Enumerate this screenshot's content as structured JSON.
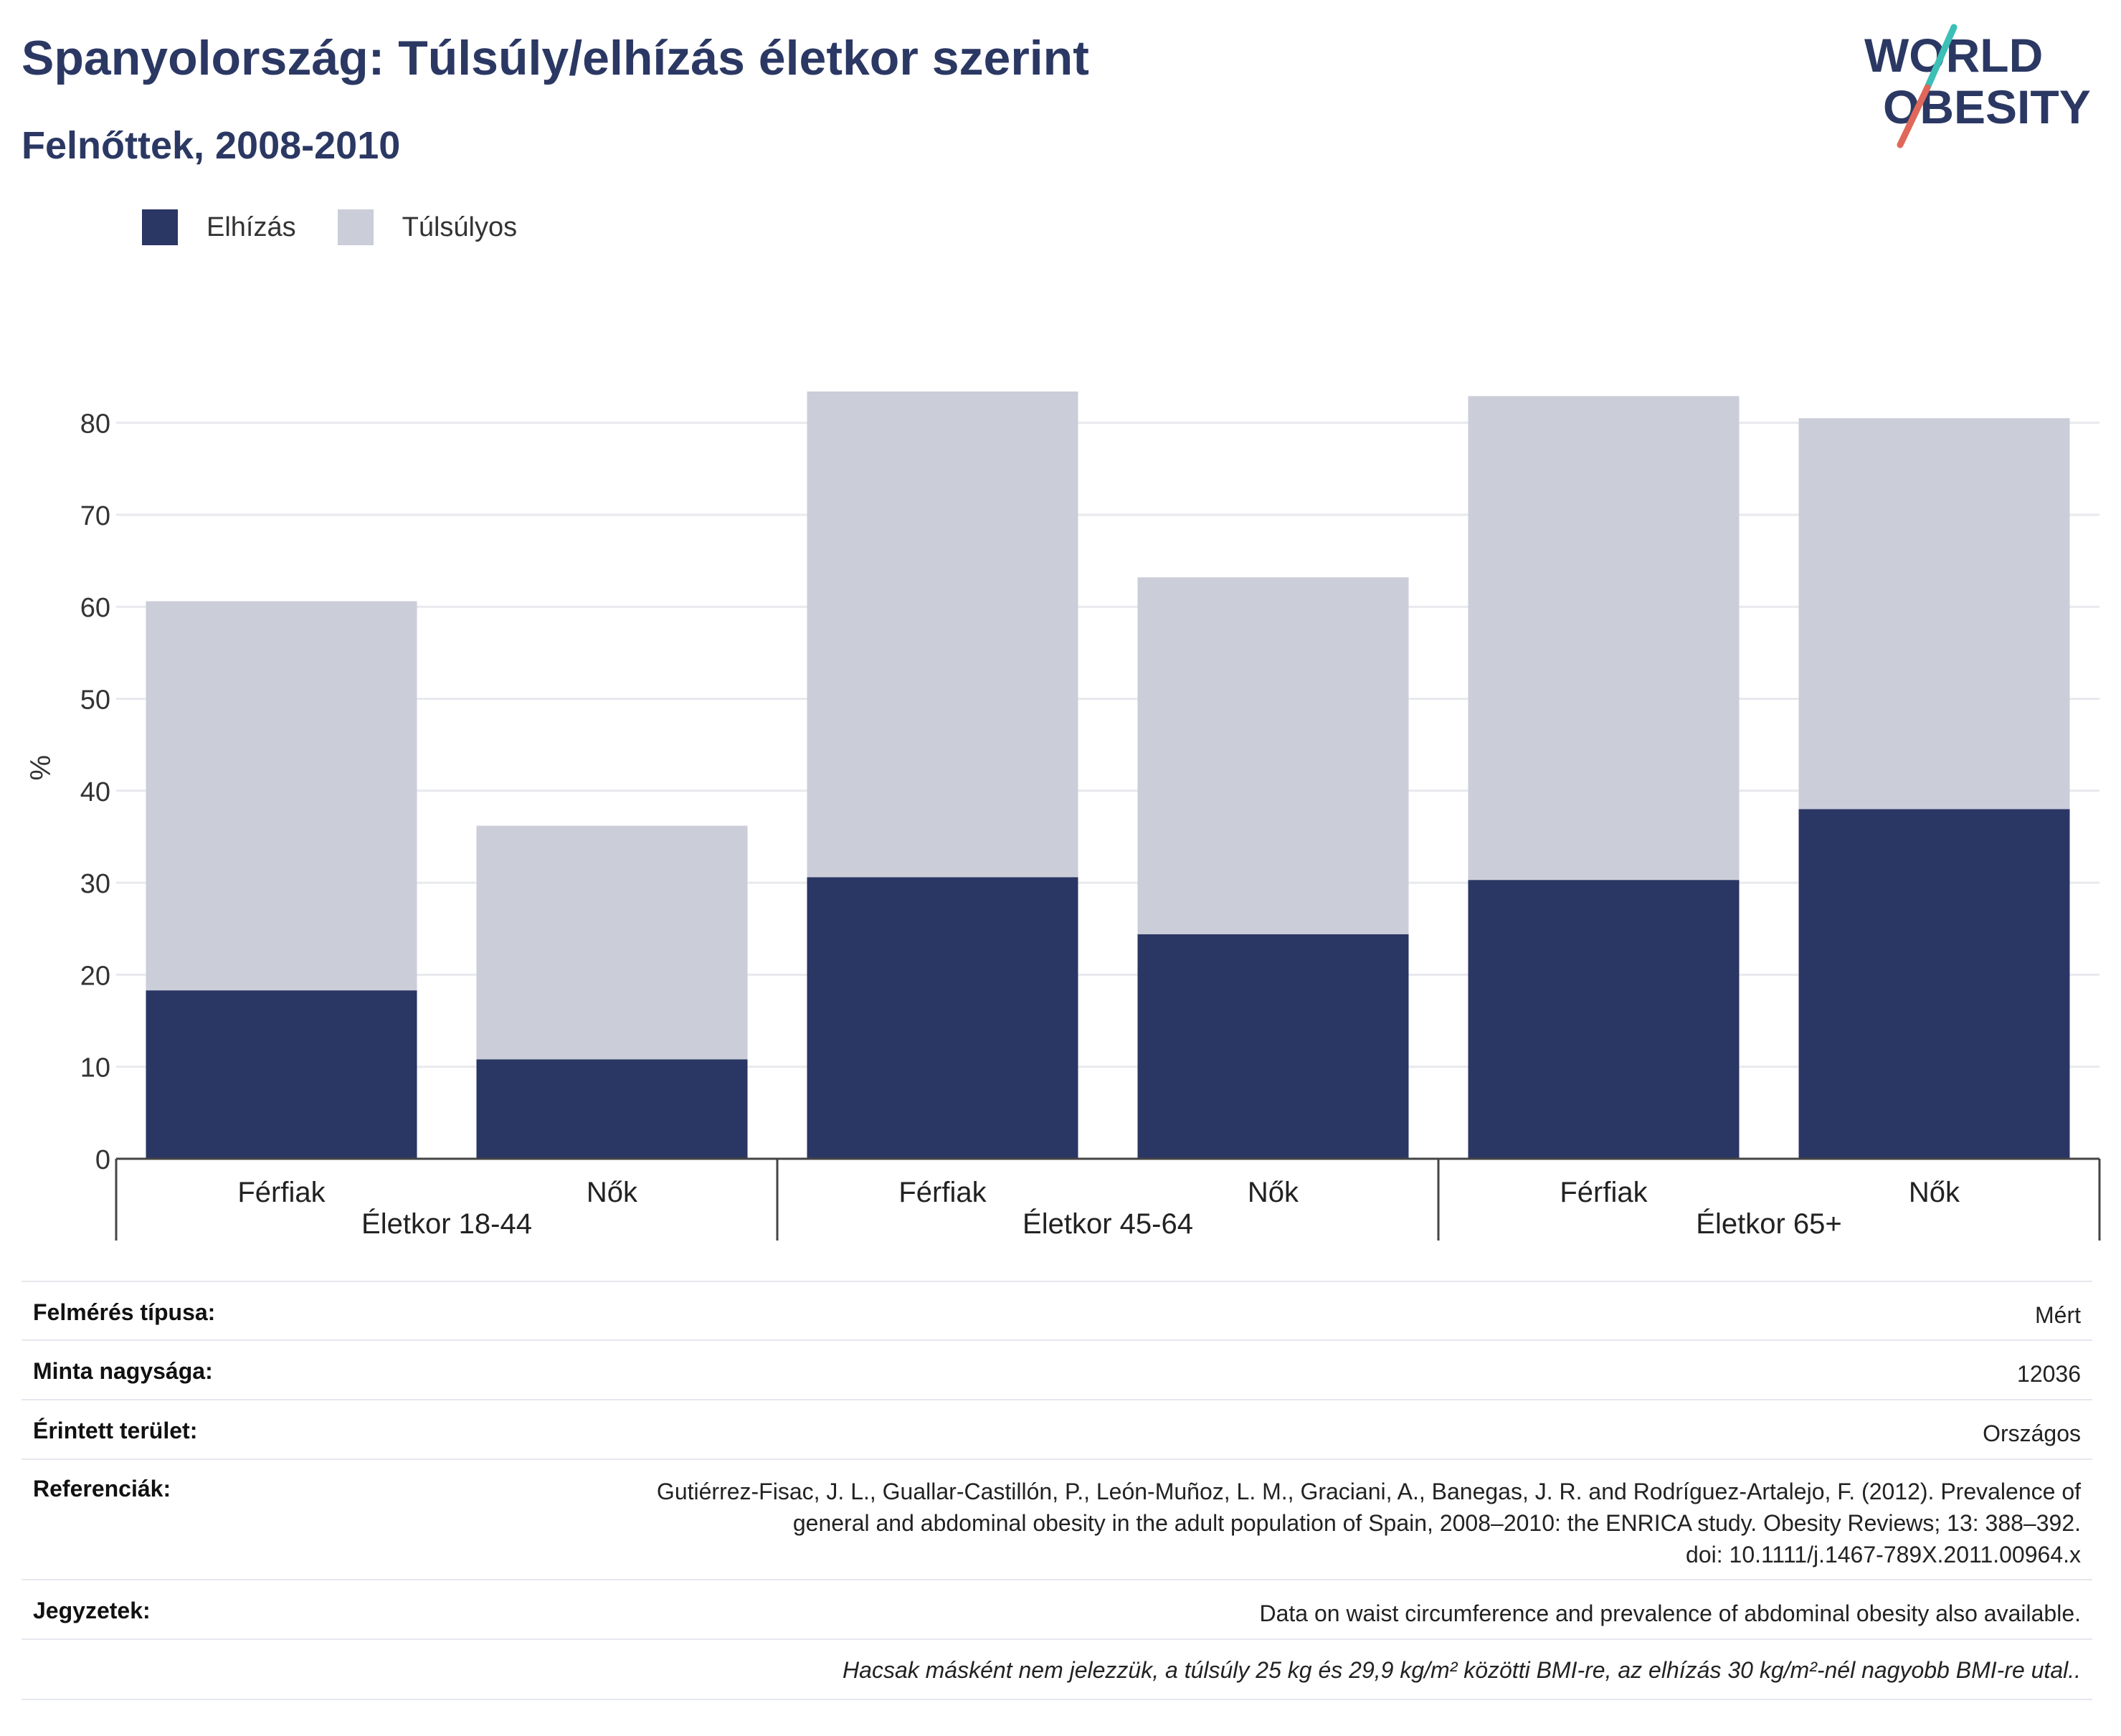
{
  "title": "Spanyolország: Túlsúly/elhízás életkor szerint",
  "subtitle": "Felnőttek, 2008-2010",
  "logo": {
    "line1": "WORLD",
    "line2": "OBESITY"
  },
  "colors": {
    "obesity": "#2a3664",
    "overweight": "#cbcdd9",
    "title": "#2b3863",
    "accent_teal": "#3bbfb6",
    "accent_red": "#e0685a"
  },
  "legend": [
    {
      "label": "Elhízás",
      "color": "#2a3664"
    },
    {
      "label": "Túlsúlyos",
      "color": "#cbcdd9"
    }
  ],
  "chart_data": {
    "type": "bar",
    "stacked": true,
    "ylabel": "%",
    "ylim": [
      0,
      85
    ],
    "yticks": [
      0,
      10,
      20,
      30,
      40,
      50,
      60,
      70,
      80
    ],
    "grid": true,
    "groups": [
      "Életkor 18-44",
      "Életkor 45-64",
      "Életkor 65+"
    ],
    "categories": [
      "Férfiak",
      "Nők",
      "Férfiak",
      "Nők",
      "Férfiak",
      "Nők"
    ],
    "series": [
      {
        "name": "Elhízás",
        "values": [
          18.3,
          10.8,
          30.6,
          24.4,
          30.3,
          38.0
        ]
      },
      {
        "name": "Túlsúlyos",
        "values": [
          42.3,
          25.4,
          52.8,
          38.8,
          52.6,
          42.5
        ]
      }
    ]
  },
  "info": {
    "survey_type": {
      "label": "Felmérés típusa:",
      "value": "Mért"
    },
    "sample_size": {
      "label": "Minta nagysága:",
      "value": "12036"
    },
    "area": {
      "label": "Érintett terület:",
      "value": "Országos"
    },
    "references": {
      "label": "Referenciák:",
      "lines": [
        "Gutiérrez-Fisac, J. L., Guallar-Castillón, P., León-Muñoz, L. M., Graciani, A., Banegas, J. R. and Rodríguez-Artalejo, F. (2012). Prevalence of",
        "general and abdominal obesity in the adult population of Spain, 2008–2010: the ENRICA study. Obesity Reviews; 13: 388–392.",
        "doi: 10.1111/j.1467-789X.2011.00964.x"
      ]
    },
    "notes": {
      "label": "Jegyzetek:",
      "value": "Data on waist circumference and prevalence of abdominal obesity also available."
    },
    "footnote": "Hacsak másként nem jelezzük, a túlsúly 25 kg és 29,9 kg/m² közötti BMI-re, az elhízás 30 kg/m²-nél nagyobb BMI-re utal.."
  }
}
